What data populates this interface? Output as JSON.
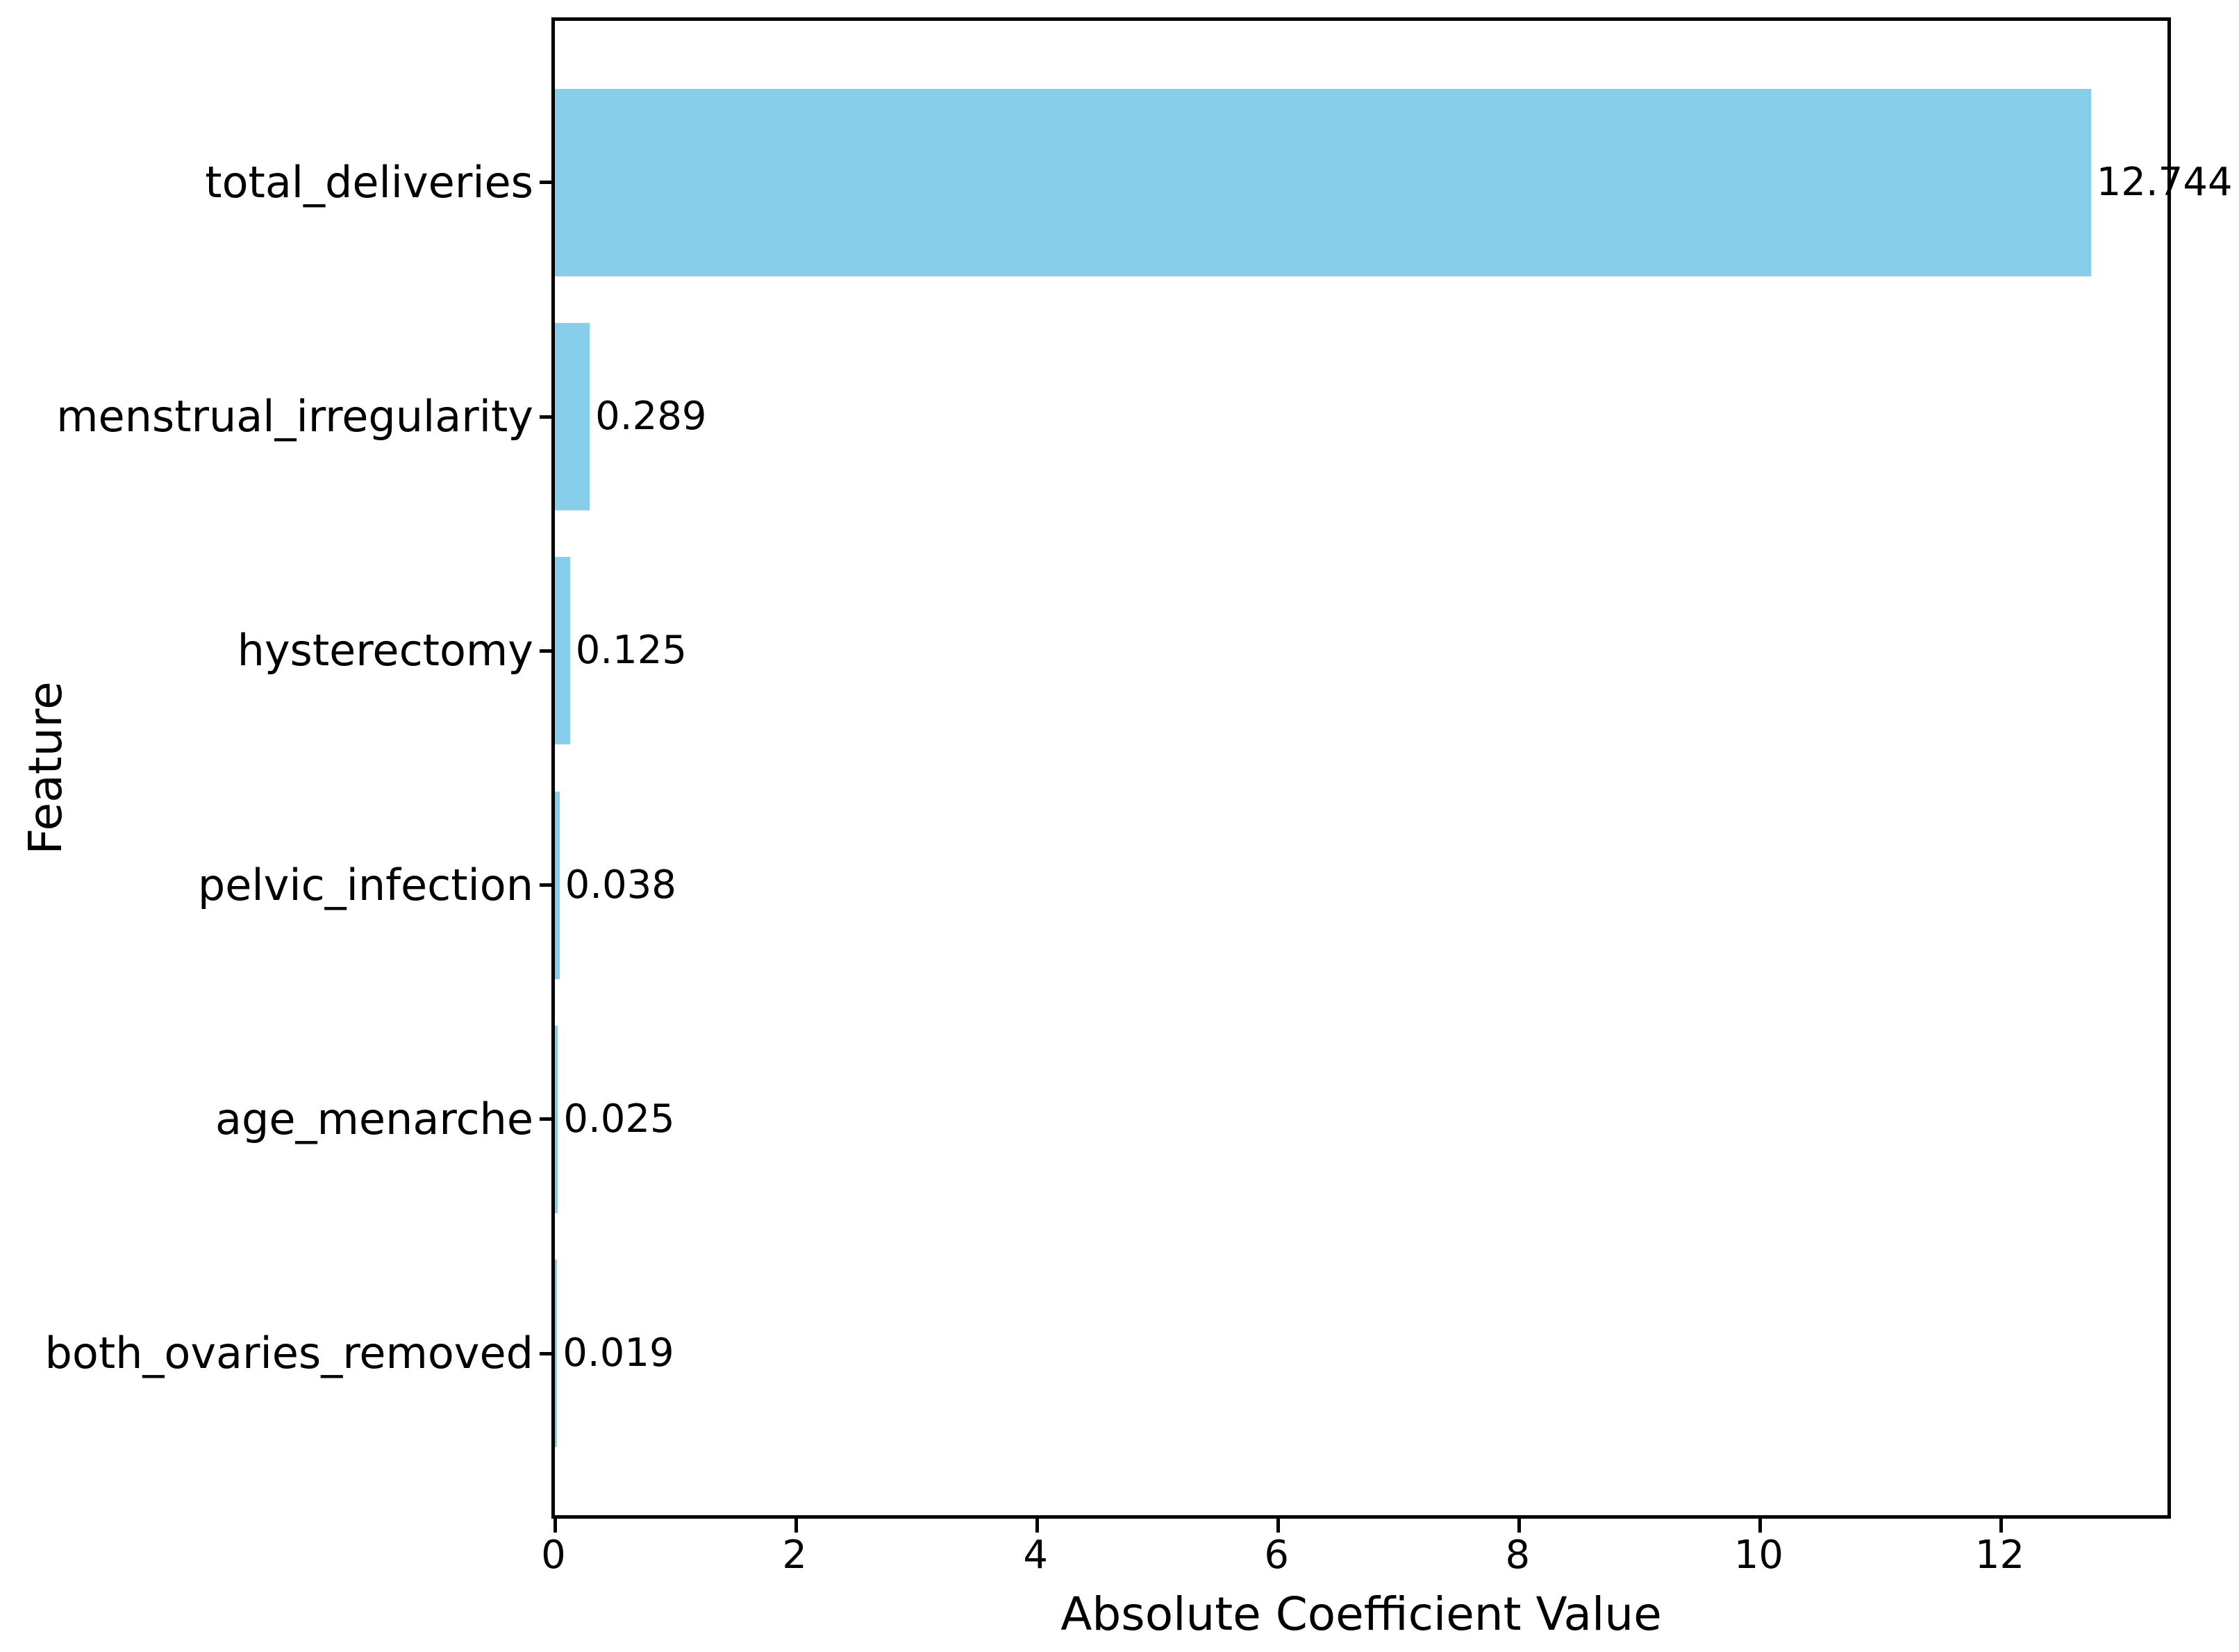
{
  "chart_data": {
    "type": "bar",
    "orientation": "horizontal",
    "xlabel": "Absolute Coefficient Value",
    "ylabel": "Feature",
    "categories": [
      "total_deliveries",
      "menstrual_irregularity",
      "hysterectomy",
      "pelvic_infection",
      "age_menarche",
      "both_ovaries_removed"
    ],
    "values": [
      12.744,
      0.289,
      0.125,
      0.038,
      0.025,
      0.019
    ],
    "value_labels": [
      "12.744",
      "0.289",
      "0.125",
      "0.038",
      "0.025",
      "0.019"
    ],
    "xticks": [
      0,
      2,
      4,
      6,
      8,
      10,
      12
    ],
    "xtick_labels": [
      "0",
      "2",
      "4",
      "6",
      "8",
      "10",
      "12"
    ],
    "xlim": [
      0,
      13.38
    ],
    "grid": false,
    "legend": null,
    "bar_color": "#87CEEB",
    "axis_color": "#000000",
    "text_color": "#000000",
    "background_color": "#FFFFFF"
  }
}
